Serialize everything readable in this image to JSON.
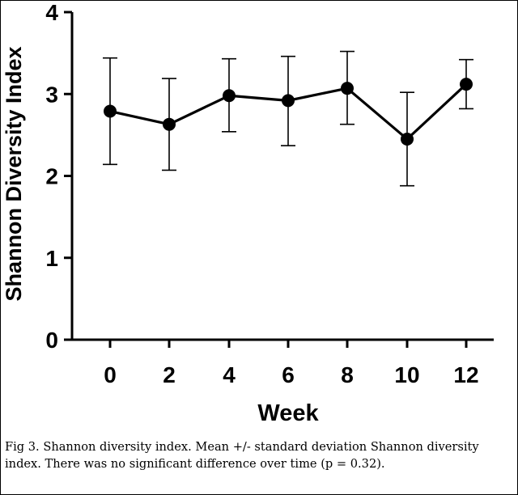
{
  "chart_data": {
    "type": "line",
    "xlabel": "Week",
    "ylabel": "Shannon Diversity Index",
    "x": [
      0,
      2,
      4,
      6,
      8,
      10,
      12
    ],
    "xticks": [
      "0",
      "2",
      "4",
      "6",
      "8",
      "10",
      "12"
    ],
    "yticks": [
      "0",
      "1",
      "2",
      "3",
      "4"
    ],
    "ylim": [
      0,
      4
    ],
    "series": [
      {
        "values": [
          2.79,
          2.63,
          2.98,
          2.92,
          3.07,
          2.45,
          3.12
        ],
        "error_low": [
          2.14,
          2.07,
          2.54,
          2.37,
          2.63,
          1.88,
          2.82
        ],
        "error_high": [
          3.44,
          3.19,
          3.43,
          3.46,
          3.52,
          3.02,
          3.42
        ]
      }
    ],
    "grid": false,
    "colors": {
      "line": "#000000",
      "marker": "#000000"
    }
  },
  "caption": "Fig 3. Shannon diversity index. Mean +/- standard deviation Shannon diversity index. There was no significant difference over time (p = 0.32)."
}
